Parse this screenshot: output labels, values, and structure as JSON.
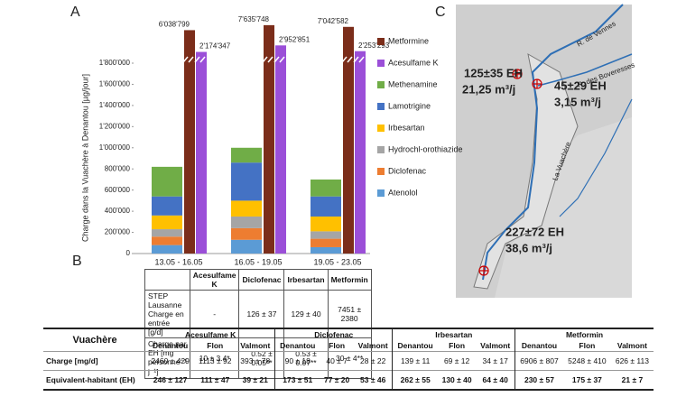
{
  "chart_data": {
    "type": "stacked-bar",
    "panel_label": "A",
    "ylabel": "Charge dans la Vuachère à Denantou [µg/jour]",
    "categories": [
      "13.05 - 16.05",
      "16.05 - 19.05",
      "19.05 - 23.05"
    ],
    "ylim": [
      0,
      1800000
    ],
    "yticks": [
      0,
      {
        "value": 200000,
        "label": "200'000"
      },
      {
        "value": 400000,
        "label": "400'000"
      },
      {
        "value": 600000,
        "label": "600'000"
      },
      {
        "value": 800000,
        "label": "800'000"
      },
      {
        "value": 1000000,
        "label": "1'000'000"
      },
      {
        "value": 1200000,
        "label": "1'200'000"
      },
      {
        "value": 1400000,
        "label": "1'400'000"
      },
      {
        "value": 1600000,
        "label": "1'600'000"
      },
      {
        "value": 1800000,
        "label": "1'800'000"
      }
    ],
    "axis_break": true,
    "side_series": [
      {
        "name": "Metformine",
        "color": "#7b2d1a",
        "values": [
          6038799,
          7635748,
          7042582
        ],
        "value_labels": [
          "6'038'799",
          "7'635'748",
          "7'042'582"
        ]
      },
      {
        "name": "Acesulfame K",
        "color": "#9b4fd8",
        "values": [
          2174347,
          2952851,
          2253293
        ],
        "value_labels": [
          "2'174'347",
          "2'952'851",
          "2'253'293"
        ]
      }
    ],
    "series": [
      {
        "name": "Methenamine",
        "color": "#70ad47",
        "values": [
          280000,
          140000,
          160000
        ]
      },
      {
        "name": "Lamotrigine",
        "color": "#4472c4",
        "values": [
          180000,
          360000,
          190000
        ]
      },
      {
        "name": "Irbesartan",
        "color": "#ffc000",
        "values": [
          130000,
          150000,
          140000
        ]
      },
      {
        "name": "Hydrochl-orothiazide",
        "color": "#a5a5a5",
        "values": [
          70000,
          110000,
          70000
        ]
      },
      {
        "name": "Diclofenac",
        "color": "#ed7d31",
        "values": [
          80000,
          110000,
          80000
        ]
      },
      {
        "name": "Atenolol",
        "color": "#5b9bd5",
        "values": [
          80000,
          130000,
          60000
        ]
      }
    ]
  },
  "panel_b": {
    "label": "B",
    "table1": {
      "columns": [
        "Acesulfame K",
        "Diclofenac",
        "Irbesartan",
        "Metformin"
      ],
      "rows": [
        [
          "STEP Lausanne Charge en entrée [g/d]",
          "-",
          "126 ± 37",
          "129 ± 40",
          "7451 ± 2380"
        ],
        [
          "Charge par EH [mg personne⁻¹ j⁻¹]",
          "10 ± 3.4*",
          "0.52 ± 0.05**",
          "0.53 ± 0.07**",
          "30 ± 4**"
        ]
      ]
    },
    "table2": {
      "corner": "Vuachère",
      "groups": [
        "Acesulfame K",
        "Diclofenac",
        "Irbesartan",
        "Metformin"
      ],
      "subcolumns": [
        "Denantou",
        "Flon",
        "Valmont"
      ],
      "rows": [
        {
          "label": "Charge [mg/d]",
          "cells": [
            "2460 ± 429",
            "1113 ± 92",
            "393 ± 78",
            "90 ± 18",
            "40 ± 7",
            "28 ± 22",
            "139 ± 11",
            "69 ± 12",
            "34 ± 17",
            "6906 ± 807",
            "5248 ± 410",
            "626 ± 113"
          ]
        },
        {
          "label": "Equivalent-habitant (EH)",
          "cells": [
            "246 ± 127",
            "111 ± 47",
            "39 ± 21",
            "173 ± 51",
            "77 ± 20",
            "53 ± 46",
            "262 ± 55",
            "130 ± 40",
            "64 ± 40",
            "230 ± 57",
            "175 ± 37",
            "21 ± 7"
          ]
        }
      ]
    }
  },
  "panel_c": {
    "label": "C",
    "annotations": [
      {
        "eh": "125±35 EH",
        "flow": "21,25 m³/j"
      },
      {
        "eh": "45±29 EH",
        "flow": "3,15 m³/j"
      },
      {
        "eh": "227±72 EH",
        "flow": "38,6 m³/j"
      }
    ],
    "places": [
      "R. de Vennes",
      "R. des Boveresses",
      "La Vuachère"
    ]
  }
}
